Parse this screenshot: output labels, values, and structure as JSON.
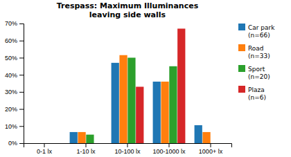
{
  "chart_data": {
    "type": "bar",
    "title": "Trespass: Maximum Illuminances\nleaving side walls",
    "categories": [
      "0-1 lx",
      "1-10 lx",
      "10-100 lx",
      "100-1000 lx",
      "1000+ lx"
    ],
    "series": [
      {
        "name": "Car park\n(n=66)",
        "values": [
          0,
          6.5,
          47,
          36,
          10.5
        ]
      },
      {
        "name": "Road\n(n=33)",
        "values": [
          0,
          6.5,
          51.5,
          36,
          6.5
        ]
      },
      {
        "name": "Sport\n(n=20)",
        "values": [
          0,
          5,
          50,
          45,
          0
        ]
      },
      {
        "name": "Plaza\n(n=6)",
        "values": [
          0,
          0,
          33,
          67,
          0
        ]
      }
    ],
    "ylim": [
      0,
      70
    ],
    "yticks": [
      {
        "value": 0,
        "label": "0%"
      },
      {
        "value": 10,
        "label": "10%"
      },
      {
        "value": 20,
        "label": "20%"
      },
      {
        "value": 30,
        "label": "30%"
      },
      {
        "value": 40,
        "label": "40%"
      },
      {
        "value": 50,
        "label": "50%"
      },
      {
        "value": 60,
        "label": "60%"
      },
      {
        "value": 70,
        "label": "70%"
      }
    ],
    "legend": "right"
  }
}
